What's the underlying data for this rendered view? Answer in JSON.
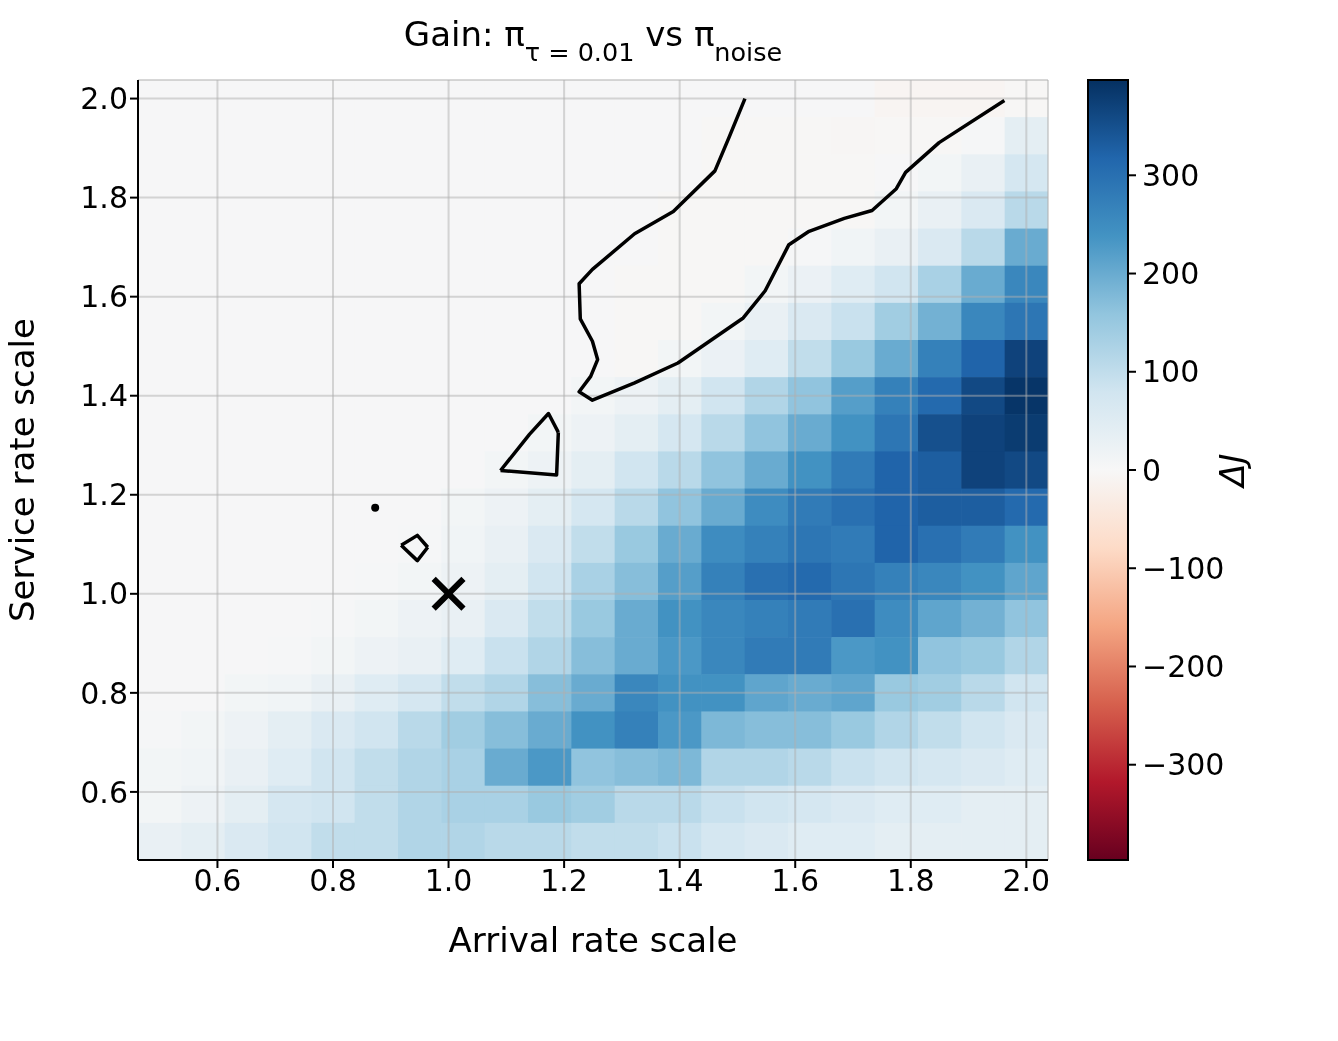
{
  "chart_data": {
    "type": "heatmap",
    "title": "Gain: π$_{τ = 0.01}$ vs π$_{noise}$",
    "xlabel": "Arrival rate scale",
    "ylabel": "Service rate scale",
    "clabel": "ΔJ",
    "xlim": [
      0.4625,
      2.0375
    ],
    "ylim": [
      0.4625,
      2.0375
    ],
    "xticks": [
      {
        "value": 0.6,
        "label": "0.6"
      },
      {
        "value": 0.8,
        "label": "0.8"
      },
      {
        "value": 1.0,
        "label": "1.0"
      },
      {
        "value": 1.2,
        "label": "1.2"
      },
      {
        "value": 1.4,
        "label": "1.4"
      },
      {
        "value": 1.6,
        "label": "1.6"
      },
      {
        "value": 1.8,
        "label": "1.8"
      },
      {
        "value": 2.0,
        "label": "2.0"
      }
    ],
    "yticks": [
      {
        "value": 0.6,
        "label": "0.6"
      },
      {
        "value": 0.8,
        "label": "0.8"
      },
      {
        "value": 1.0,
        "label": "1.0"
      },
      {
        "value": 1.2,
        "label": "1.2"
      },
      {
        "value": 1.4,
        "label": "1.4"
      },
      {
        "value": 1.6,
        "label": "1.6"
      },
      {
        "value": 1.8,
        "label": "1.8"
      },
      {
        "value": 2.0,
        "label": "2.0"
      }
    ],
    "clim": [
      -397,
      397
    ],
    "cticks": [
      {
        "value": -300,
        "label": "−300"
      },
      {
        "value": -200,
        "label": "−200"
      },
      {
        "value": -100,
        "label": "−100"
      },
      0,
      100,
      200,
      300
    ],
    "grid": true,
    "cells": [
      [
        3,
        3,
        3,
        3,
        3,
        3,
        3,
        3,
        3,
        3,
        3,
        3,
        3,
        3,
        3,
        3,
        3,
        -8,
        -8,
        -8,
        -3
      ],
      [
        3,
        3,
        3,
        3,
        3,
        3,
        3,
        3,
        3,
        3,
        3,
        3,
        3,
        -3,
        -3,
        -3,
        -5,
        -3,
        -3,
        5,
        40
      ],
      [
        3,
        3,
        3,
        3,
        3,
        3,
        3,
        3,
        3,
        3,
        3,
        3,
        3,
        -3,
        -3,
        -3,
        -3,
        3,
        10,
        30,
        70
      ],
      [
        3,
        3,
        3,
        3,
        3,
        3,
        3,
        3,
        3,
        3,
        3,
        3,
        -3,
        -3,
        -3,
        -3,
        -3,
        10,
        30,
        60,
        110
      ],
      [
        3,
        3,
        3,
        3,
        3,
        3,
        3,
        3,
        3,
        3,
        3,
        3,
        -3,
        -3,
        -3,
        5,
        15,
        30,
        60,
        110,
        200
      ],
      [
        3,
        3,
        3,
        3,
        3,
        3,
        3,
        3,
        3,
        3,
        3,
        -3,
        -3,
        -3,
        10,
        25,
        50,
        80,
        130,
        200,
        260
      ],
      [
        3,
        3,
        3,
        3,
        3,
        3,
        3,
        3,
        3,
        3,
        3,
        -3,
        -3,
        10,
        30,
        60,
        90,
        140,
        190,
        260,
        290
      ],
      [
        3,
        3,
        3,
        3,
        3,
        3,
        3,
        3,
        3,
        3,
        3,
        -3,
        10,
        25,
        50,
        100,
        150,
        200,
        270,
        320,
        370
      ],
      [
        3,
        3,
        3,
        3,
        3,
        3,
        3,
        3,
        3,
        3,
        10,
        20,
        40,
        80,
        120,
        160,
        220,
        270,
        310,
        360,
        390
      ],
      [
        3,
        3,
        3,
        3,
        3,
        3,
        3,
        3,
        3,
        10,
        20,
        40,
        70,
        110,
        160,
        200,
        240,
        290,
        350,
        370,
        380
      ],
      [
        3,
        3,
        3,
        3,
        3,
        3,
        3,
        3,
        10,
        20,
        40,
        80,
        110,
        160,
        200,
        240,
        280,
        320,
        330,
        370,
        360
      ],
      [
        3,
        3,
        3,
        3,
        3,
        3,
        3,
        10,
        20,
        40,
        70,
        110,
        160,
        200,
        250,
        280,
        300,
        320,
        330,
        330,
        310
      ],
      [
        3,
        3,
        3,
        3,
        3,
        3,
        5,
        15,
        30,
        60,
        100,
        150,
        200,
        250,
        270,
        290,
        280,
        320,
        300,
        280,
        240
      ],
      [
        3,
        3,
        3,
        3,
        3,
        5,
        10,
        20,
        40,
        80,
        130,
        170,
        220,
        270,
        300,
        310,
        290,
        270,
        260,
        240,
        210
      ],
      [
        3,
        3,
        3,
        3,
        5,
        10,
        20,
        30,
        60,
        100,
        150,
        200,
        240,
        260,
        270,
        280,
        300,
        250,
        210,
        190,
        160
      ],
      [
        3,
        3,
        3,
        5,
        10,
        20,
        30,
        50,
        90,
        120,
        170,
        200,
        230,
        260,
        280,
        280,
        230,
        240,
        160,
        150,
        120
      ],
      [
        3,
        3,
        10,
        15,
        30,
        50,
        70,
        100,
        120,
        170,
        200,
        260,
        240,
        240,
        210,
        200,
        210,
        150,
        140,
        110,
        80
      ],
      [
        5,
        10,
        20,
        40,
        60,
        80,
        110,
        140,
        170,
        200,
        240,
        270,
        230,
        180,
        170,
        170,
        150,
        120,
        100,
        80,
        60
      ],
      [
        10,
        15,
        30,
        50,
        80,
        100,
        120,
        130,
        200,
        230,
        160,
        170,
        180,
        120,
        120,
        110,
        90,
        80,
        70,
        60,
        50
      ],
      [
        10,
        20,
        40,
        70,
        80,
        100,
        120,
        130,
        130,
        150,
        140,
        110,
        110,
        90,
        80,
        70,
        60,
        50,
        50,
        40,
        40
      ],
      [
        30,
        40,
        60,
        80,
        100,
        100,
        120,
        120,
        110,
        110,
        100,
        100,
        90,
        70,
        60,
        50,
        50,
        40,
        40,
        40,
        40
      ]
    ],
    "series": [
      {
        "type": "line",
        "color": "#000000",
        "x": [
          1.513,
          1.486,
          1.461,
          1.389,
          1.322,
          1.249,
          1.226,
          1.228,
          1.249,
          1.258,
          1.246,
          1.226,
          1.249,
          1.322,
          1.397,
          1.51,
          1.548,
          1.589,
          1.624,
          1.685,
          1.733,
          1.775,
          1.791,
          1.849,
          1.962
        ],
        "values": [
          2.0,
          1.923,
          1.854,
          1.772,
          1.727,
          1.655,
          1.626,
          1.555,
          1.51,
          1.473,
          1.439,
          1.408,
          1.391,
          1.426,
          1.466,
          1.557,
          1.612,
          1.705,
          1.732,
          1.758,
          1.774,
          1.818,
          1.851,
          1.911,
          1.996
        ]
      },
      {
        "type": "line",
        "color": "#000000",
        "x": [
          1.09,
          1.14,
          1.173,
          1.19
        ],
        "values": [
          1.249,
          1.322,
          1.364,
          1.326
        ]
      },
      {
        "type": "line",
        "color": "#000000",
        "x": [
          1.19,
          1.187,
          1.09
        ],
        "values": [
          1.326,
          1.24,
          1.249
        ]
      },
      {
        "type": "line",
        "color": "#000000",
        "x": [
          0.918,
          0.946,
          0.964
        ],
        "values": [
          1.098,
          1.118,
          1.094
        ]
      },
      {
        "type": "line",
        "color": "#000000",
        "x": [
          0.964,
          0.946,
          0.918
        ],
        "values": [
          1.094,
          1.067,
          1.098
        ]
      },
      {
        "type": "scatter",
        "color": "#000000",
        "marker": "circle",
        "x": [
          0.873
        ],
        "values": [
          1.174
        ]
      },
      {
        "type": "scatter",
        "color": "#000000",
        "marker": "cross",
        "x": [
          1.0
        ],
        "values": [
          1.0
        ]
      }
    ]
  }
}
